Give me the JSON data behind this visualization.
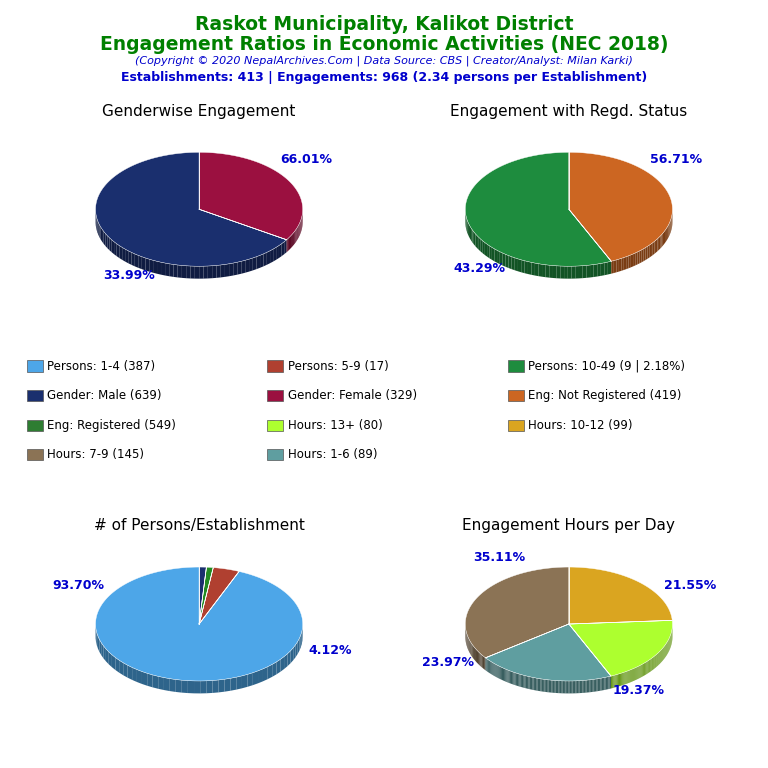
{
  "title_line1": "Raskot Municipality, Kalikot District",
  "title_line2": "Engagement Ratios in Economic Activities (NEC 2018)",
  "subtitle": "(Copyright © 2020 NepalArchives.Com | Data Source: CBS | Creator/Analyst: Milan Karki)",
  "stats_line": "Establishments: 413 | Engagements: 968 (2.34 persons per Establishment)",
  "title_color": "#008000",
  "subtitle_color": "#0000CD",
  "stats_color": "#0000CD",
  "pie1_title": "Genderwise Engagement",
  "pie1_values": [
    66.01,
    33.99
  ],
  "pie1_colors": [
    "#1a2f6e",
    "#9b1040"
  ],
  "pie1_labels": [
    "66.01%",
    "33.99%"
  ],
  "pie1_label_angles": [
    40,
    240
  ],
  "pie1_startangle": 90,
  "pie2_title": "Engagement with Regd. Status",
  "pie2_values": [
    56.71,
    43.29
  ],
  "pie2_colors": [
    "#1e8c3e",
    "#cc6622"
  ],
  "pie2_labels": [
    "56.71%",
    "43.29%"
  ],
  "pie2_label_angles": [
    40,
    230
  ],
  "pie2_startangle": 90,
  "pie3_title": "# of Persons/Establishment",
  "pie3_values": [
    93.7,
    4.12,
    1.06,
    1.12
  ],
  "pie3_colors": [
    "#4da6e8",
    "#b04030",
    "#228B22",
    "#1a2f6e"
  ],
  "pie3_labels": [
    "93.70%",
    "4.12%",
    "",
    ""
  ],
  "pie3_label_angles": [
    150,
    340,
    -1,
    -1
  ],
  "pie3_startangle": 90,
  "pie4_title": "Engagement Hours per Day",
  "pie4_values": [
    35.11,
    21.55,
    19.37,
    23.97
  ],
  "pie4_colors": [
    "#8B7355",
    "#5F9EA0",
    "#ADFF2F",
    "#DAA520"
  ],
  "pie4_labels": [
    "35.11%",
    "21.55%",
    "19.37%",
    "23.97%"
  ],
  "pie4_label_angles": [
    120,
    30,
    300,
    210
  ],
  "pie4_startangle": 90,
  "legend_items": [
    {
      "label": "Persons: 1-4 (387)",
      "color": "#4da6e8"
    },
    {
      "label": "Persons: 5-9 (17)",
      "color": "#b04030"
    },
    {
      "label": "Persons: 10-49 (9 | 2.18%)",
      "color": "#1e8c3e"
    },
    {
      "label": "Gender: Male (639)",
      "color": "#1a2f6e"
    },
    {
      "label": "Gender: Female (329)",
      "color": "#9b1040"
    },
    {
      "label": "Eng: Not Registered (419)",
      "color": "#cc6622"
    },
    {
      "label": "Eng: Registered (549)",
      "color": "#2e7d32"
    },
    {
      "label": "Hours: 13+ (80)",
      "color": "#ADFF2F"
    },
    {
      "label": "Hours: 10-12 (99)",
      "color": "#DAA520"
    },
    {
      "label": "Hours: 7-9 (145)",
      "color": "#8B7355"
    },
    {
      "label": "Hours: 1-6 (89)",
      "color": "#5F9EA0"
    }
  ],
  "label_color": "#0000CD",
  "label_fontsize": 9,
  "pie_title_fontsize": 11
}
